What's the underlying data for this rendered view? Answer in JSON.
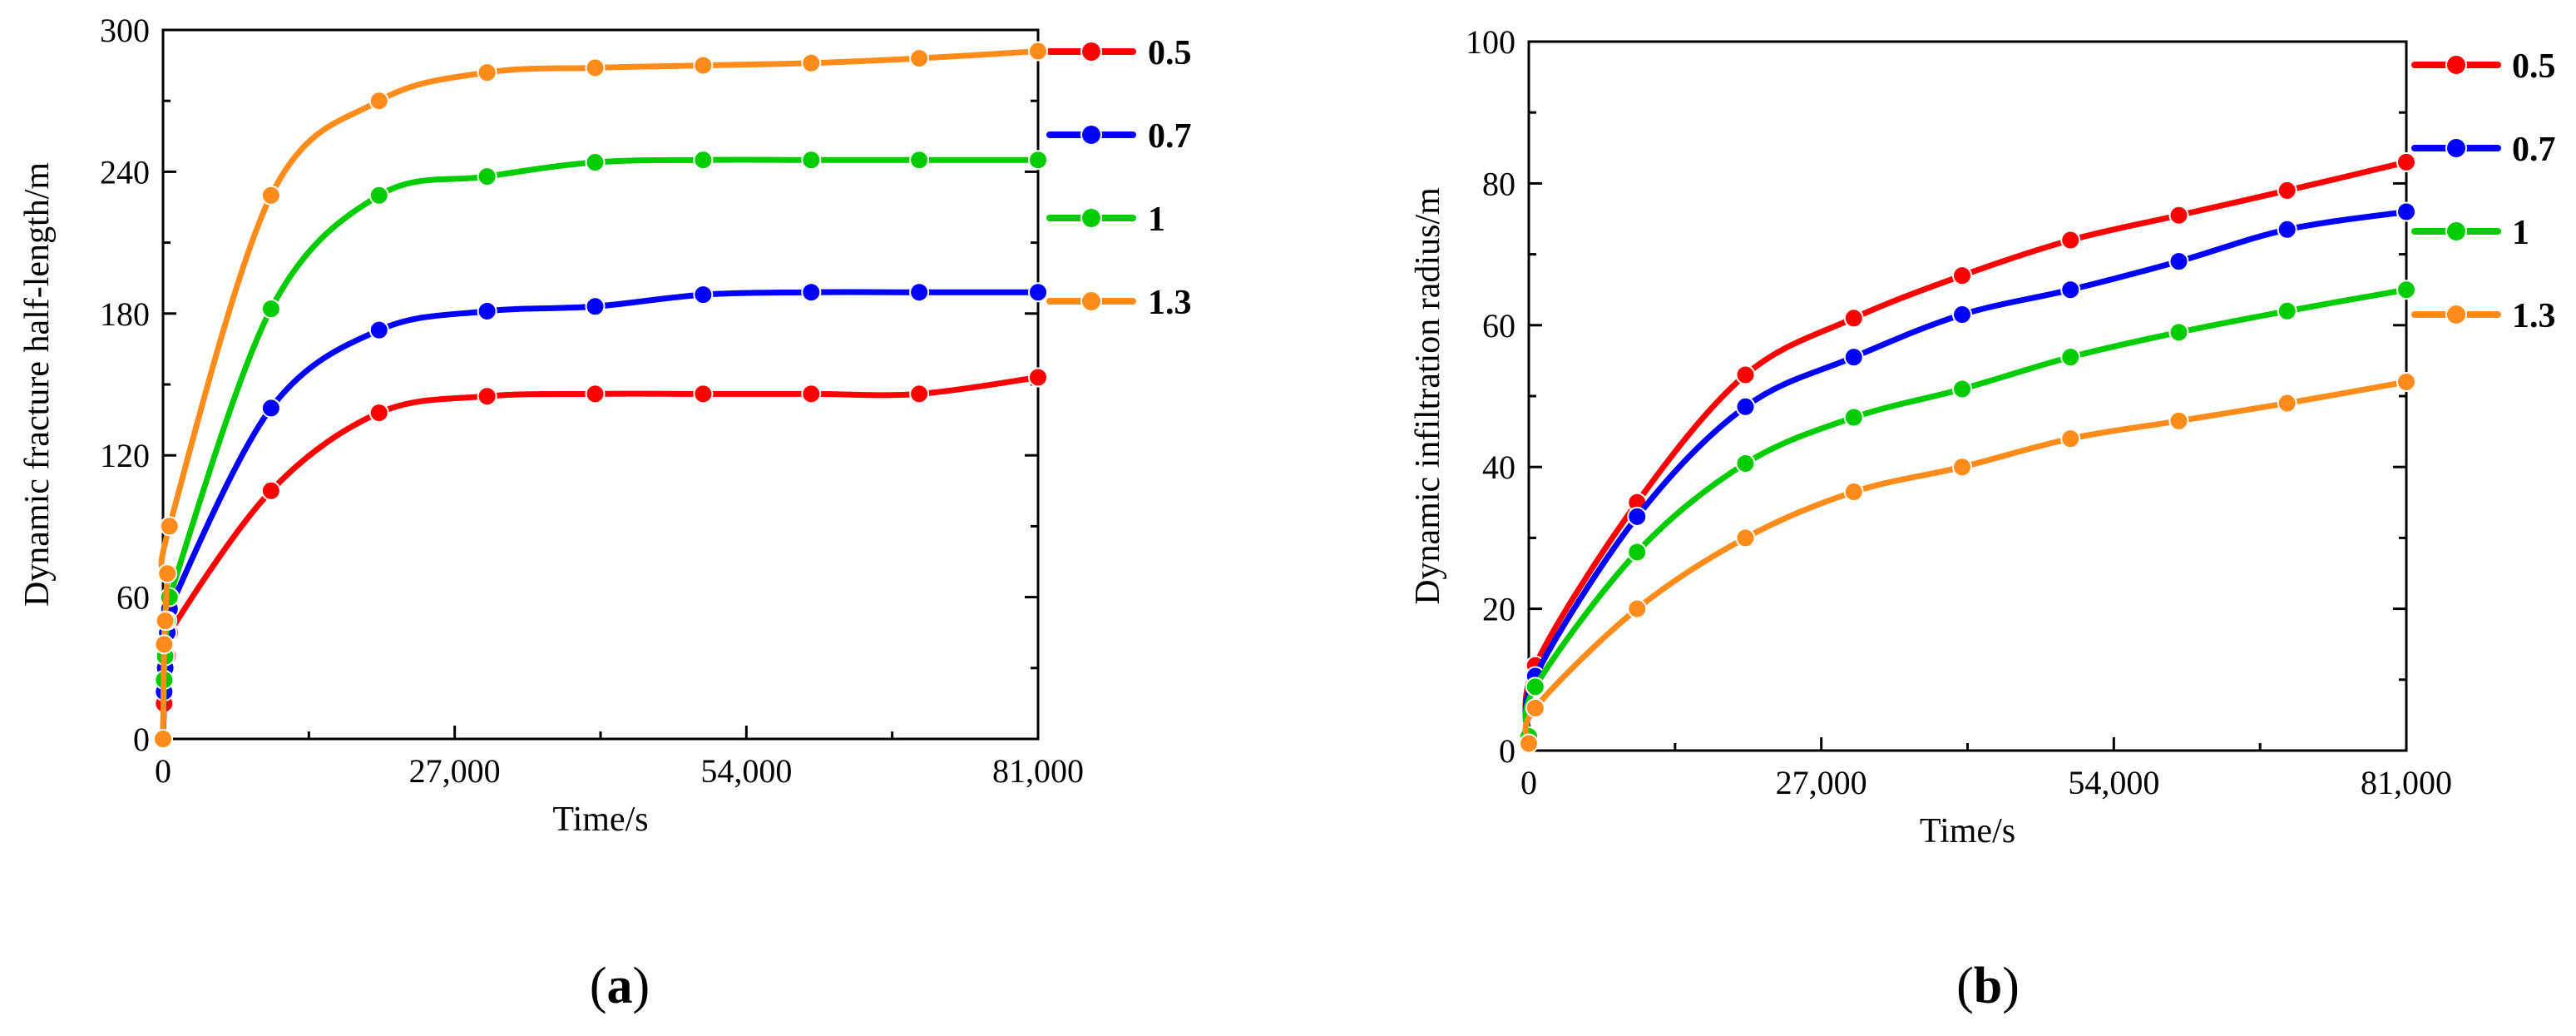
{
  "chart_data": [
    {
      "type": "line",
      "panel_label": "a",
      "title": "",
      "xlabel": "Time/s",
      "ylabel": "Dynamic fracture half-length/m",
      "xlim": [
        0,
        81000
      ],
      "ylim": [
        0,
        300
      ],
      "xticks": [
        0,
        27000,
        54000,
        81000
      ],
      "xtick_labels": [
        "0",
        "27,000",
        "54,000",
        "81,000"
      ],
      "yticks": [
        0,
        60,
        120,
        180,
        240,
        300
      ],
      "ytick_labels": [
        "0",
        "60",
        "120",
        "180",
        "240",
        "300"
      ],
      "legend_position": "right",
      "series": [
        {
          "name": "0.5",
          "color": "#ff0000",
          "x": [
            0,
            100,
            200,
            400,
            600,
            10000,
            20000,
            30000,
            40000,
            50000,
            60000,
            70000,
            81000
          ],
          "y": [
            0,
            15,
            25,
            35,
            45,
            105,
            138,
            145,
            146,
            146,
            146,
            146,
            153
          ]
        },
        {
          "name": "0.7",
          "color": "#0000ff",
          "x": [
            0,
            100,
            200,
            400,
            600,
            10000,
            20000,
            30000,
            40000,
            50000,
            60000,
            70000,
            81000
          ],
          "y": [
            0,
            20,
            30,
            45,
            55,
            140,
            173,
            181,
            183,
            188,
            189,
            189,
            189
          ]
        },
        {
          "name": "1",
          "color": "#00cc00",
          "x": [
            0,
            100,
            200,
            400,
            600,
            10000,
            20000,
            30000,
            40000,
            50000,
            60000,
            70000,
            81000
          ],
          "y": [
            0,
            25,
            35,
            50,
            60,
            182,
            230,
            238,
            244,
            245,
            245,
            245,
            245
          ]
        },
        {
          "name": "1.3",
          "color": "#ff8c1a",
          "x": [
            0,
            100,
            200,
            400,
            600,
            10000,
            20000,
            30000,
            40000,
            50000,
            60000,
            70000,
            81000
          ],
          "y": [
            0,
            40,
            50,
            70,
            90,
            230,
            270,
            282,
            284,
            285,
            286,
            288,
            291
          ]
        }
      ]
    },
    {
      "type": "line",
      "panel_label": "b",
      "title": "",
      "xlabel": "Time/s",
      "ylabel": "Dynamic infiltration radius/m",
      "xlim": [
        0,
        81000
      ],
      "ylim": [
        0,
        100
      ],
      "xticks": [
        0,
        27000,
        54000,
        81000
      ],
      "xtick_labels": [
        "0",
        "27,000",
        "54,000",
        "81,000"
      ],
      "yticks": [
        0,
        20,
        40,
        60,
        80,
        100
      ],
      "ytick_labels": [
        "0",
        "20",
        "40",
        "60",
        "80",
        "100"
      ],
      "legend_position": "right",
      "series": [
        {
          "name": "0.5",
          "color": "#ff0000",
          "x": [
            0,
            600,
            10000,
            20000,
            30000,
            40000,
            50000,
            60000,
            70000,
            81000
          ],
          "y": [
            2,
            12,
            35,
            53,
            61,
            67,
            72,
            75.5,
            79,
            83
          ]
        },
        {
          "name": "0.7",
          "color": "#0000ff",
          "x": [
            0,
            600,
            10000,
            20000,
            30000,
            40000,
            50000,
            60000,
            70000,
            81000
          ],
          "y": [
            2,
            10.5,
            33,
            48.5,
            55.5,
            61.5,
            65,
            69,
            73.5,
            76
          ]
        },
        {
          "name": "1",
          "color": "#00cc00",
          "x": [
            0,
            600,
            10000,
            20000,
            30000,
            40000,
            50000,
            60000,
            70000,
            81000
          ],
          "y": [
            2,
            9,
            28,
            40.5,
            47,
            51,
            55.5,
            59,
            62,
            65
          ]
        },
        {
          "name": "1.3",
          "color": "#ff8c1a",
          "x": [
            0,
            600,
            10000,
            20000,
            30000,
            40000,
            50000,
            60000,
            70000,
            81000
          ],
          "y": [
            1,
            6,
            20,
            30,
            36.5,
            40,
            44,
            46.5,
            49,
            52
          ]
        }
      ]
    }
  ]
}
